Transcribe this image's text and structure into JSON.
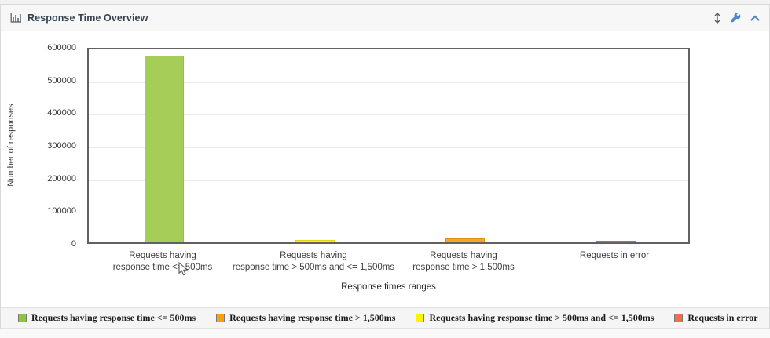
{
  "panel": {
    "title": "Response Time Overview"
  },
  "chart_data": {
    "type": "bar",
    "title": "Response Time Overview",
    "xlabel": "Response times ranges",
    "ylabel": "Number of responses",
    "ylim": [
      0,
      600000
    ],
    "yticks": [
      0,
      100000,
      200000,
      300000,
      400000,
      500000,
      600000
    ],
    "grid": "horizontal",
    "categories": [
      "Requests having response time <= 500ms",
      "Requests having response time > 500ms and <= 1,500ms",
      "Requests having response time > 1,500ms",
      "Requests in error"
    ],
    "category_lines": [
      [
        "Requests having",
        "response time <= 500ms"
      ],
      [
        "Requests having",
        "response time > 500ms and <= 1,500ms"
      ],
      [
        "Requests having",
        "response time > 1,500ms"
      ],
      [
        "Requests in error"
      ]
    ],
    "values": [
      570000,
      7000,
      11000,
      5000
    ],
    "bar_colors": [
      "#a6cd57",
      "#f7ef28",
      "#f3a82d",
      "#f0725a"
    ],
    "bar_borders": [
      "#95bd46",
      "#e0d800",
      "#dd9214",
      "#d85f43"
    ],
    "legend_position": "bottom"
  },
  "legend": {
    "items": [
      {
        "label": "Requests having response time <= 500ms",
        "color": "#8dc63f"
      },
      {
        "label": "Requests having response time > 1,500ms",
        "color": "#ff9f0e"
      },
      {
        "label": "Requests having response time > 500ms and <= 1,500ms",
        "color": "#fef200"
      },
      {
        "label": "Requests in error",
        "color": "#f96b4a"
      }
    ]
  }
}
